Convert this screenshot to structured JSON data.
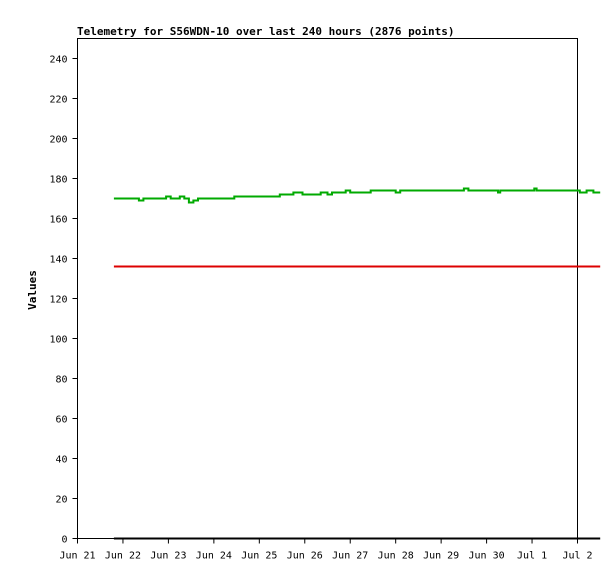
{
  "chart_data": {
    "type": "line",
    "title": "Telemetry for S56WDN-10 over last 240 hours (2876 points)",
    "xlabel": "",
    "ylabel": "Values",
    "ylim": [
      0,
      250
    ],
    "xlim": [
      "Jun 21",
      "Jul 2"
    ],
    "grid": false,
    "legend": "none",
    "y_ticks": [
      0,
      20,
      40,
      60,
      80,
      100,
      120,
      140,
      160,
      180,
      200,
      220,
      240
    ],
    "x_ticks": [
      "Jun 21",
      "Jun 22",
      "Jun 23",
      "Jun 24",
      "Jun 25",
      "Jun 26",
      "Jun 27",
      "Jun 28",
      "Jun 29",
      "Jun 30",
      "Jul 1",
      "Jul 2"
    ],
    "series": [
      {
        "color": "#00aa00",
        "points": [
          [
            0.8,
            170
          ],
          [
            1.3,
            170
          ],
          [
            1.35,
            169
          ],
          [
            1.45,
            170
          ],
          [
            1.9,
            170
          ],
          [
            1.95,
            171
          ],
          [
            2.05,
            170
          ],
          [
            2.2,
            170
          ],
          [
            2.25,
            171
          ],
          [
            2.35,
            170
          ],
          [
            2.45,
            168
          ],
          [
            2.55,
            169
          ],
          [
            2.65,
            170
          ],
          [
            3.4,
            170
          ],
          [
            3.45,
            171
          ],
          [
            4.4,
            171
          ],
          [
            4.45,
            172
          ],
          [
            4.7,
            172
          ],
          [
            4.75,
            173
          ],
          [
            4.9,
            173
          ],
          [
            4.95,
            172
          ],
          [
            5.3,
            172
          ],
          [
            5.35,
            173
          ],
          [
            5.5,
            172
          ],
          [
            5.6,
            173
          ],
          [
            5.85,
            173
          ],
          [
            5.9,
            174
          ],
          [
            6.0,
            173
          ],
          [
            6.4,
            173
          ],
          [
            6.45,
            174
          ],
          [
            6.95,
            174
          ],
          [
            7.0,
            173
          ],
          [
            7.1,
            174
          ],
          [
            8.45,
            174
          ],
          [
            8.5,
            175
          ],
          [
            8.6,
            174
          ],
          [
            9.2,
            174
          ],
          [
            9.25,
            173
          ],
          [
            9.3,
            174
          ],
          [
            10.0,
            174
          ],
          [
            10.05,
            175
          ],
          [
            10.1,
            174
          ],
          [
            11.0,
            174
          ],
          [
            11.05,
            173
          ],
          [
            11.15,
            173
          ],
          [
            11.2,
            174
          ],
          [
            11.3,
            174
          ],
          [
            11.35,
            173
          ],
          [
            11.5,
            173
          ]
        ]
      },
      {
        "color": "#dd0000",
        "points": [
          [
            0.8,
            136
          ],
          [
            11.5,
            136
          ]
        ]
      },
      {
        "color": "#000000",
        "points": [
          [
            0.8,
            0
          ],
          [
            11.5,
            0
          ]
        ]
      }
    ]
  }
}
